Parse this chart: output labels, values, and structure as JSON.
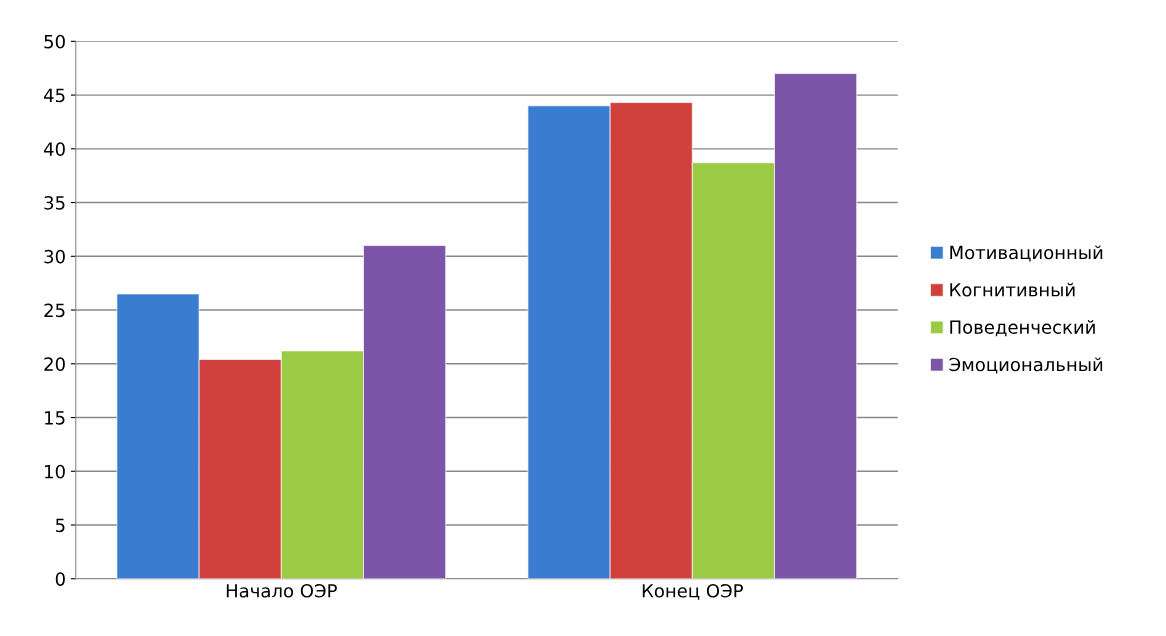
{
  "chart_data": {
    "type": "bar",
    "categories": [
      "Начало ОЭР",
      "Конец ОЭР"
    ],
    "series": [
      {
        "name": "Мотивационный",
        "color": "#3a7dd0",
        "values": [
          26.5,
          44
        ]
      },
      {
        "name": "Когнитивный",
        "color": "#d0413e",
        "values": [
          20.4,
          44.3
        ]
      },
      {
        "name": "Поведенческий",
        "color": "#9bca45",
        "values": [
          21.2,
          38.7
        ]
      },
      {
        "name": "Эмоциональный",
        "color": "#7d55a8",
        "values": [
          31,
          47
        ]
      }
    ],
    "ylim": [
      0,
      50
    ],
    "yticks": [
      0,
      5,
      10,
      15,
      20,
      25,
      30,
      35,
      40,
      45,
      50
    ],
    "grid": "y",
    "legend": "right"
  }
}
